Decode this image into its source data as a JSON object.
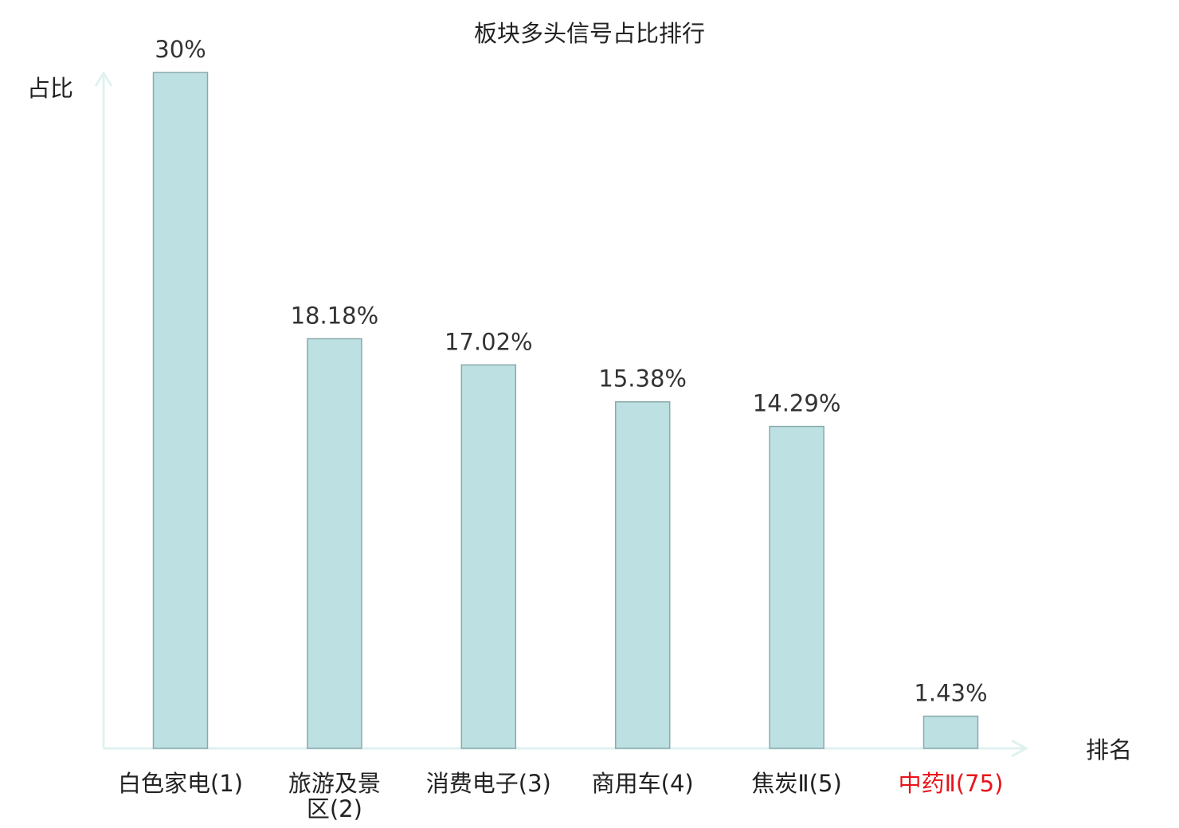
{
  "chart_data": {
    "type": "bar",
    "title": "板块多头信号占比排行",
    "ylabel": "占比",
    "xlabel": "排名",
    "ylim": [
      0,
      30
    ],
    "categories": [
      [
        "白色家电(1)"
      ],
      [
        "旅游及景",
        "区(2)"
      ],
      [
        "消费电子(3)"
      ],
      [
        "商用车(4)"
      ],
      [
        "焦炭Ⅱ(5)"
      ],
      [
        "中药Ⅱ(75)"
      ]
    ],
    "values": [
      30,
      18.18,
      17.02,
      15.38,
      14.29,
      1.43
    ],
    "value_labels": [
      "30%",
      "18.18%",
      "17.02%",
      "15.38%",
      "14.29%",
      "1.43%"
    ],
    "highlight_index": 5,
    "grid": false,
    "colors": {
      "bar_fill": "#bde0e2",
      "bar_stroke": "#8aa9ab",
      "axis": "#dff2ef",
      "text": "#333333",
      "highlight_text": "#e8141b"
    }
  }
}
